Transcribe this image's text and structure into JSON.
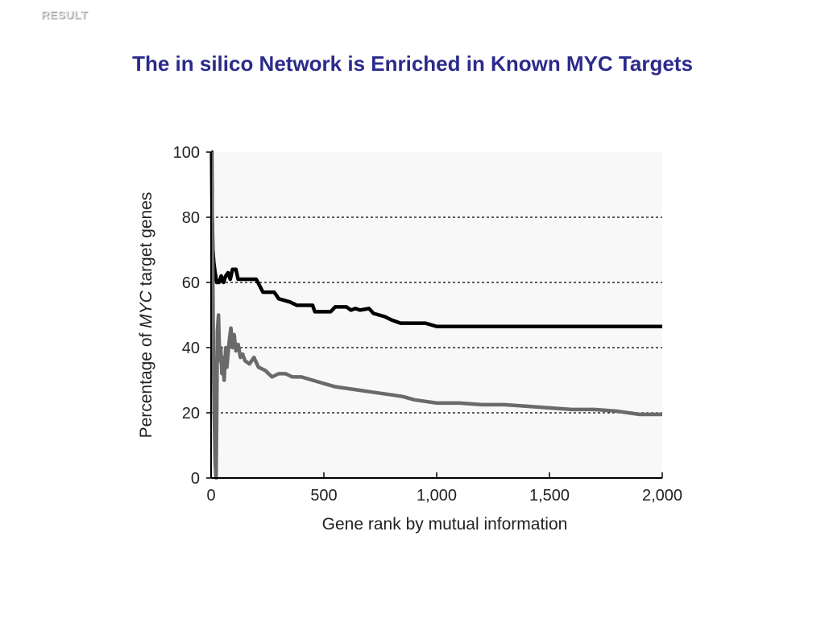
{
  "header": {
    "label": "RESULT"
  },
  "slide": {
    "title": "The in silico Network is Enriched in Known MYC Targets"
  },
  "colors": {
    "title": "#2b2b8c",
    "series_black": "#000000",
    "series_gray": "#6a6a6a",
    "plot_bg": "#f8f8f8"
  },
  "chart_data": {
    "type": "line",
    "title": "",
    "xlabel": "Gene rank by mutual information",
    "ylabel_prefix": "Percentage of ",
    "ylabel_italic": "MYC",
    "ylabel_suffix": " target genes",
    "xlim": [
      0,
      2000
    ],
    "ylim": [
      0,
      100
    ],
    "x_ticks": [
      0,
      500,
      1000,
      1500,
      2000
    ],
    "x_tick_labels": [
      "0",
      "500",
      "1,000",
      "1,500",
      "2,000"
    ],
    "y_ticks": [
      0,
      20,
      40,
      60,
      80,
      100
    ],
    "y_tick_labels": [
      "0",
      "20",
      "40",
      "60",
      "80",
      "100"
    ],
    "gridlines_y": [
      20,
      40,
      60,
      80
    ],
    "grid": "dashed horizontal",
    "series": [
      {
        "color": "#000000",
        "points": [
          [
            1,
            100
          ],
          [
            3,
            100
          ],
          [
            5,
            80
          ],
          [
            8,
            70
          ],
          [
            12,
            66
          ],
          [
            18,
            63
          ],
          [
            25,
            60
          ],
          [
            35,
            60
          ],
          [
            45,
            62
          ],
          [
            55,
            60
          ],
          [
            65,
            62
          ],
          [
            75,
            63
          ],
          [
            85,
            61
          ],
          [
            95,
            64
          ],
          [
            110,
            64
          ],
          [
            120,
            61
          ],
          [
            200,
            61
          ],
          [
            230,
            57
          ],
          [
            280,
            57
          ],
          [
            300,
            55
          ],
          [
            350,
            54
          ],
          [
            380,
            53
          ],
          [
            450,
            53
          ],
          [
            460,
            51
          ],
          [
            530,
            51
          ],
          [
            550,
            52.5
          ],
          [
            600,
            52.5
          ],
          [
            620,
            51.5
          ],
          [
            640,
            52
          ],
          [
            660,
            51.5
          ],
          [
            700,
            52
          ],
          [
            720,
            50.5
          ],
          [
            770,
            49.5
          ],
          [
            800,
            48.5
          ],
          [
            840,
            47.5
          ],
          [
            950,
            47.5
          ],
          [
            1000,
            46.5
          ],
          [
            2000,
            46.5
          ]
        ]
      },
      {
        "color": "#6a6a6a",
        "points": [
          [
            1,
            100
          ],
          [
            4,
            85
          ],
          [
            7,
            65
          ],
          [
            10,
            40
          ],
          [
            14,
            20
          ],
          [
            18,
            5
          ],
          [
            22,
            0
          ],
          [
            25,
            20
          ],
          [
            28,
            45
          ],
          [
            33,
            50
          ],
          [
            38,
            36
          ],
          [
            43,
            40
          ],
          [
            48,
            32
          ],
          [
            53,
            37
          ],
          [
            58,
            30
          ],
          [
            65,
            40
          ],
          [
            70,
            34
          ],
          [
            75,
            38
          ],
          [
            82,
            43
          ],
          [
            88,
            46
          ],
          [
            95,
            40
          ],
          [
            102,
            44
          ],
          [
            110,
            39
          ],
          [
            120,
            41
          ],
          [
            130,
            37
          ],
          [
            140,
            38
          ],
          [
            150,
            36
          ],
          [
            170,
            35
          ],
          [
            190,
            37
          ],
          [
            210,
            34
          ],
          [
            240,
            33
          ],
          [
            270,
            31
          ],
          [
            300,
            32
          ],
          [
            330,
            32
          ],
          [
            360,
            31
          ],
          [
            400,
            31
          ],
          [
            450,
            30
          ],
          [
            500,
            29
          ],
          [
            550,
            28
          ],
          [
            600,
            27.5
          ],
          [
            650,
            27
          ],
          [
            700,
            26.5
          ],
          [
            750,
            26
          ],
          [
            800,
            25.5
          ],
          [
            850,
            25
          ],
          [
            900,
            24
          ],
          [
            950,
            23.5
          ],
          [
            1000,
            23
          ],
          [
            1100,
            23
          ],
          [
            1200,
            22.5
          ],
          [
            1300,
            22.5
          ],
          [
            1400,
            22
          ],
          [
            1500,
            21.5
          ],
          [
            1600,
            21
          ],
          [
            1700,
            21
          ],
          [
            1800,
            20.5
          ],
          [
            1900,
            19.5
          ],
          [
            2000,
            19.5
          ]
        ]
      }
    ]
  }
}
